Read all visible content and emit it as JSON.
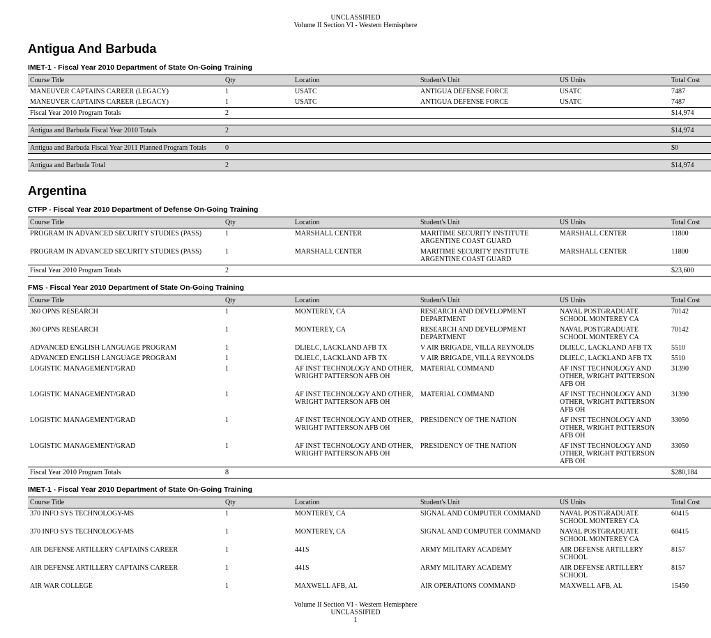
{
  "header": {
    "line1": "UNCLASSIFIED",
    "line2": "Volume II Section VI - Western Hemisphere"
  },
  "footer": {
    "line1": "Volume II Section VI - Western Hemisphere",
    "line2": "UNCLASSIFIED",
    "page": "1"
  },
  "columns": {
    "course": "Course Title",
    "qty": "Qty",
    "location": "Location",
    "student_unit": "Student's Unit",
    "us_units": "US Units",
    "total_cost": "Total Cost"
  },
  "totals_label": "Fiscal Year 2010 Program Totals",
  "countries": [
    {
      "name": "Antigua And Barbuda",
      "sections": [
        {
          "title": "IMET-1 - Fiscal Year 2010 Department of State On-Going Training",
          "rows": [
            {
              "course": "MANEUVER CAPTAINS CAREER (LEGACY)",
              "qty": "1",
              "location": "USATC",
              "student_unit": "ANTIGUA DEFENSE FORCE",
              "us_units": "USATC",
              "total_cost": "7487"
            },
            {
              "course": "MANEUVER CAPTAINS CAREER (LEGACY)",
              "qty": "1",
              "location": "USATC",
              "student_unit": "ANTIGUA DEFENSE FORCE",
              "us_units": "USATC",
              "total_cost": "7487"
            }
          ],
          "totals": {
            "qty": "2",
            "total_cost": "$14,974"
          }
        }
      ],
      "summaries": [
        {
          "label": "Antigua and Barbuda Fiscal Year 2010 Totals",
          "qty": "2",
          "total_cost": "$14,974"
        },
        {
          "label": "Antigua and Barbuda Fiscal Year 2011 Planned Program Totals",
          "qty": "0",
          "total_cost": "$0"
        },
        {
          "label": "Antigua and Barbuda Total",
          "qty": "2",
          "total_cost": "$14,974"
        }
      ]
    },
    {
      "name": "Argentina",
      "sections": [
        {
          "title": "CTFP - Fiscal Year 2010 Department of Defense On-Going Training",
          "rows": [
            {
              "course": "PROGRAM IN ADVANCED SECURITY STUDIES (PASS)",
              "qty": "1",
              "location": "MARSHALL CENTER",
              "student_unit": "MARITIME SECURITY INSTITUTE ARGENTINE COAST GUARD",
              "us_units": "MARSHALL CENTER",
              "total_cost": "11800"
            },
            {
              "course": "PROGRAM IN ADVANCED SECURITY STUDIES (PASS)",
              "qty": "1",
              "location": "MARSHALL CENTER",
              "student_unit": "MARITIME SECURITY INSTITUTE ARGENTINE COAST GUARD",
              "us_units": "MARSHALL CENTER",
              "total_cost": "11800"
            }
          ],
          "totals": {
            "qty": "2",
            "total_cost": "$23,600"
          }
        },
        {
          "title": "FMS - Fiscal Year 2010 Department of State On-Going Training",
          "rows": [
            {
              "course": "360 OPNS RESEARCH",
              "qty": "1",
              "location": "MONTEREY, CA",
              "student_unit": "RESEARCH AND DEVELOPMENT DEPARTMENT",
              "us_units": "NAVAL POSTGRADUATE SCHOOL MONTEREY CA",
              "total_cost": "70142"
            },
            {
              "course": "360 OPNS RESEARCH",
              "qty": "1",
              "location": "MONTEREY, CA",
              "student_unit": "RESEARCH AND DEVELOPMENT DEPARTMENT",
              "us_units": "NAVAL POSTGRADUATE SCHOOL MONTEREY CA",
              "total_cost": "70142"
            },
            {
              "course": "ADVANCED ENGLISH LANGUAGE PROGRAM",
              "qty": "1",
              "location": "DLIELC, LACKLAND AFB TX",
              "student_unit": "V AIR BRIGADE, VILLA REYNOLDS",
              "us_units": "DLIELC, LACKLAND AFB TX",
              "total_cost": "5510"
            },
            {
              "course": "ADVANCED ENGLISH LANGUAGE PROGRAM",
              "qty": "1",
              "location": "DLIELC, LACKLAND AFB TX",
              "student_unit": "V AIR BRIGADE, VILLA REYNOLDS",
              "us_units": "DLIELC, LACKLAND AFB TX",
              "total_cost": "5510"
            },
            {
              "course": "LOGISTIC MANAGEMENT/GRAD",
              "qty": "1",
              "location": "AF INST TECHNOLOGY AND OTHER, WRIGHT PATTERSON AFB OH",
              "student_unit": "MATERIAL COMMAND",
              "us_units": "AF INST TECHNOLOGY AND OTHER, WRIGHT PATTERSON AFB OH",
              "total_cost": "31390"
            },
            {
              "course": "LOGISTIC MANAGEMENT/GRAD",
              "qty": "1",
              "location": "AF INST TECHNOLOGY AND OTHER, WRIGHT PATTERSON AFB OH",
              "student_unit": "MATERIAL COMMAND",
              "us_units": "AF INST TECHNOLOGY AND OTHER, WRIGHT PATTERSON AFB OH",
              "total_cost": "31390"
            },
            {
              "course": "LOGISTIC MANAGEMENT/GRAD",
              "qty": "1",
              "location": "AF INST TECHNOLOGY AND OTHER, WRIGHT PATTERSON AFB OH",
              "student_unit": "PRESIDENCY OF THE NATION",
              "us_units": "AF INST TECHNOLOGY AND OTHER, WRIGHT PATTERSON AFB OH",
              "total_cost": "33050"
            },
            {
              "course": "LOGISTIC MANAGEMENT/GRAD",
              "qty": "1",
              "location": "AF INST TECHNOLOGY AND OTHER, WRIGHT PATTERSON AFB OH",
              "student_unit": "PRESIDENCY OF THE NATION",
              "us_units": "AF INST TECHNOLOGY AND OTHER, WRIGHT PATTERSON AFB OH",
              "total_cost": "33050"
            }
          ],
          "totals": {
            "qty": "8",
            "total_cost": "$280,184"
          }
        },
        {
          "title": "IMET-1 - Fiscal Year 2010 Department of State On-Going Training",
          "rows": [
            {
              "course": "370 INFO SYS TECHNOLOGY-MS",
              "qty": "1",
              "location": "MONTEREY, CA",
              "student_unit": "SIGNAL AND COMPUTER COMMAND",
              "us_units": "NAVAL POSTGRADUATE SCHOOL MONTEREY CA",
              "total_cost": "60415"
            },
            {
              "course": "370 INFO SYS TECHNOLOGY-MS",
              "qty": "1",
              "location": "MONTEREY, CA",
              "student_unit": "SIGNAL AND COMPUTER COMMAND",
              "us_units": "NAVAL POSTGRADUATE SCHOOL MONTEREY CA",
              "total_cost": "60415"
            },
            {
              "course": "AIR DEFENSE ARTILLERY CAPTAINS CAREER",
              "qty": "1",
              "location": "441S",
              "student_unit": "ARMY MILITARY ACADEMY",
              "us_units": "AIR DEFENSE ARTILLERY SCHOOL",
              "total_cost": "8157"
            },
            {
              "course": "AIR DEFENSE ARTILLERY CAPTAINS CAREER",
              "qty": "1",
              "location": "441S",
              "student_unit": "ARMY MILITARY ACADEMY",
              "us_units": "AIR DEFENSE ARTILLERY SCHOOL",
              "total_cost": "8157"
            },
            {
              "course": "AIR WAR COLLEGE",
              "qty": "1",
              "location": "MAXWELL AFB, AL",
              "student_unit": "AIR OPERATIONS COMMAND",
              "us_units": "MAXWELL AFB, AL",
              "total_cost": "15450"
            }
          ]
        }
      ]
    }
  ]
}
